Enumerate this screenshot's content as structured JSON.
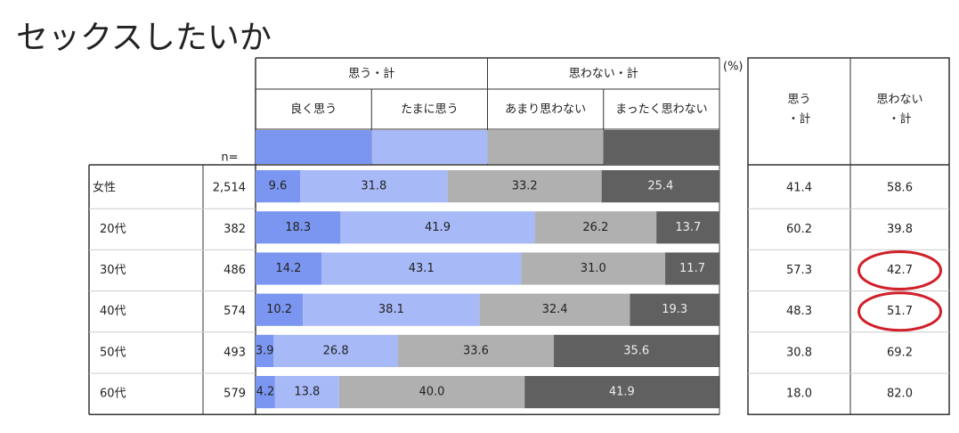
{
  "chart_data": {
    "type": "bar",
    "orientation": "horizontal",
    "stacked": true,
    "title": "セックスしたいか",
    "unit_note": "(%)",
    "n_header": "n=",
    "categories": [
      "女性",
      "20代",
      "30代",
      "40代",
      "50代",
      "60代"
    ],
    "n": [
      2514,
      382,
      486,
      574,
      493,
      579
    ],
    "n_labels": [
      "2,514",
      "382",
      "486",
      "574",
      "493",
      "579"
    ],
    "xlim": [
      0,
      100
    ],
    "groups": [
      "思う・計",
      "思わない・計"
    ],
    "series": [
      {
        "name": "良く思う",
        "color": "#7b96f0",
        "values": [
          9.6,
          18.3,
          14.2,
          10.2,
          3.9,
          4.2
        ],
        "value_labels": [
          "9.6",
          "18.3",
          "14.2",
          "10.2",
          "3.9",
          "4.2"
        ]
      },
      {
        "name": "たまに思う",
        "color": "#a8b9f8",
        "values": [
          31.8,
          41.9,
          43.1,
          38.1,
          26.8,
          13.8
        ],
        "value_labels": [
          "31.8",
          "41.9",
          "43.1",
          "38.1",
          "26.8",
          "13.8"
        ]
      },
      {
        "name": "あまり思わない",
        "color": "#b0b0b0",
        "values": [
          33.2,
          26.2,
          31.0,
          32.4,
          33.6,
          40.0
        ],
        "value_labels": [
          "33.2",
          "26.2",
          "31.0",
          "32.4",
          "33.6",
          "40.0"
        ]
      },
      {
        "name": "まったく思わない",
        "color": "#606060",
        "values": [
          25.4,
          13.7,
          11.7,
          19.3,
          35.6,
          41.9
        ],
        "value_labels": [
          "25.4",
          "13.7",
          "11.7",
          "19.3",
          "35.6",
          "41.9"
        ]
      }
    ],
    "totals": [
      {
        "name_lines": [
          "思う",
          "・計"
        ],
        "values": [
          41.4,
          60.2,
          57.3,
          48.3,
          30.8,
          18.0
        ],
        "value_labels": [
          "41.4",
          "60.2",
          "57.3",
          "48.3",
          "30.8",
          "18.0"
        ]
      },
      {
        "name_lines": [
          "思わない",
          "・計"
        ],
        "values": [
          58.6,
          39.8,
          42.7,
          51.7,
          69.2,
          82.0
        ],
        "value_labels": [
          "58.6",
          "39.8",
          "42.7",
          "51.7",
          "69.2",
          "82.0"
        ],
        "circled": [
          2,
          3
        ],
        "circle_color": "#d0202a"
      }
    ]
  }
}
